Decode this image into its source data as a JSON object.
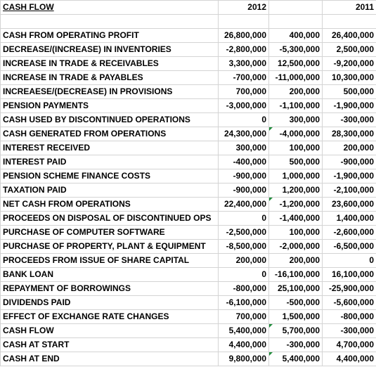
{
  "header": {
    "title": "CASH FLOW",
    "col_2012": "2012",
    "col_var": "",
    "col_2011": "2011"
  },
  "rows": [
    {
      "label": "CASH FROM OPERATING PROFIT",
      "y2012": "26,800,000",
      "var": "400,000",
      "var_sign": "pos",
      "y2011": "26,400,000",
      "flag": false
    },
    {
      "label": "DECREASE/(INCREASE) IN INVENTORIES",
      "y2012": "-2,800,000",
      "var": "-5,300,000",
      "var_sign": "neg",
      "y2011": "2,500,000",
      "flag": false
    },
    {
      "label": "INCREASE IN TRADE & RECEIVABLES",
      "y2012": "3,300,000",
      "var": "12,500,000",
      "var_sign": "pos",
      "y2011": "-9,200,000",
      "flag": false
    },
    {
      "label": "INCREASE IN TRADE & PAYABLES",
      "y2012": "-700,000",
      "var": "-11,000,000",
      "var_sign": "neg",
      "y2011": "10,300,000",
      "flag": false
    },
    {
      "label": "INCREAESE/(DECREASE) IN PROVISIONS",
      "y2012": "700,000",
      "var": "200,000",
      "var_sign": "pos",
      "y2011": "500,000",
      "flag": false
    },
    {
      "label": "PENSION PAYMENTS",
      "y2012": "-3,000,000",
      "var": "-1,100,000",
      "var_sign": "neg",
      "y2011": "-1,900,000",
      "flag": false
    },
    {
      "label": "CASH USED BY DISCONTINUED OPERATIONS",
      "y2012": "0",
      "var": "300,000",
      "var_sign": "pos",
      "y2011": "-300,000",
      "flag": false
    },
    {
      "label": "CASH GENERATED FROM OPERATIONS",
      "y2012": "24,300,000",
      "var": "-4,000,000",
      "var_sign": "neg",
      "y2011": "28,300,000",
      "flag": true
    },
    {
      "label": "INTEREST RECEIVED",
      "y2012": "300,000",
      "var": "100,000",
      "var_sign": "pos",
      "y2011": "200,000",
      "flag": false
    },
    {
      "label": "INTEREST PAID",
      "y2012": "-400,000",
      "var": "500,000",
      "var_sign": "pos",
      "y2011": "-900,000",
      "flag": false
    },
    {
      "label": "PENSION SCHEME FINANCE COSTS",
      "y2012": "-900,000",
      "var": "1,000,000",
      "var_sign": "pos",
      "y2011": "-1,900,000",
      "flag": false
    },
    {
      "label": "TAXATION PAID",
      "y2012": "-900,000",
      "var": "1,200,000",
      "var_sign": "pos",
      "y2011": "-2,100,000",
      "flag": false
    },
    {
      "label": "NET CASH FROM OPERATIONS",
      "y2012": "22,400,000",
      "var": "-1,200,000",
      "var_sign": "neg",
      "y2011": "23,600,000",
      "flag": true
    },
    {
      "label": "PROCEEDS ON DISPOSAL OF DISCONTINUED OPS",
      "y2012": "0",
      "var": "-1,400,000",
      "var_sign": "neg",
      "y2011": "1,400,000",
      "flag": false
    },
    {
      "label": "PURCHASE OF COMPUTER SOFTWARE",
      "y2012": "-2,500,000",
      "var": "100,000",
      "var_sign": "pos",
      "y2011": "-2,600,000",
      "flag": false
    },
    {
      "label": "PURCHASE OF PROPERTY, PLANT & EQUIPMENT",
      "y2012": "-8,500,000",
      "var": "-2,000,000",
      "var_sign": "neg",
      "y2011": "-6,500,000",
      "flag": false
    },
    {
      "label": "PROCEEDS FROM ISSUE OF SHARE CAPITAL",
      "y2012": "200,000",
      "var": "200,000",
      "var_sign": "pos",
      "y2011": "0",
      "flag": false
    },
    {
      "label": "BANK LOAN",
      "y2012": "0",
      "var": "-16,100,000",
      "var_sign": "neg",
      "y2011": "16,100,000",
      "flag": false
    },
    {
      "label": "REPAYMENT OF BORROWINGS",
      "y2012": "-800,000",
      "var": "25,100,000",
      "var_sign": "pos",
      "y2011": "-25,900,000",
      "flag": false
    },
    {
      "label": "DIVIDENDS PAID",
      "y2012": "-6,100,000",
      "var": "-500,000",
      "var_sign": "neg",
      "y2011": "-5,600,000",
      "flag": false
    },
    {
      "label": "EFFECT OF EXCHANGE RATE CHANGES",
      "y2012": "700,000",
      "var": "1,500,000",
      "var_sign": "pos",
      "y2011": "-800,000",
      "flag": false
    },
    {
      "label": "CASH FLOW",
      "y2012": "5,400,000",
      "var": "5,700,000",
      "var_sign": "pos",
      "y2011": "-300,000",
      "flag": true
    },
    {
      "label": "CASH AT START",
      "y2012": "4,400,000",
      "var": "-300,000",
      "var_sign": "neg",
      "y2011": "4,700,000",
      "flag": false
    },
    {
      "label": "CASH AT END",
      "y2012": "9,800,000",
      "var": "5,400,000",
      "var_sign": "pos",
      "y2011": "4,400,000",
      "flag": true
    }
  ],
  "colors": {
    "positive_variance": "#1f2f8f",
    "negative_variance": "#8b1a1a",
    "note_flag": "#1f8b3a",
    "gridline": "#d4d4d4"
  }
}
